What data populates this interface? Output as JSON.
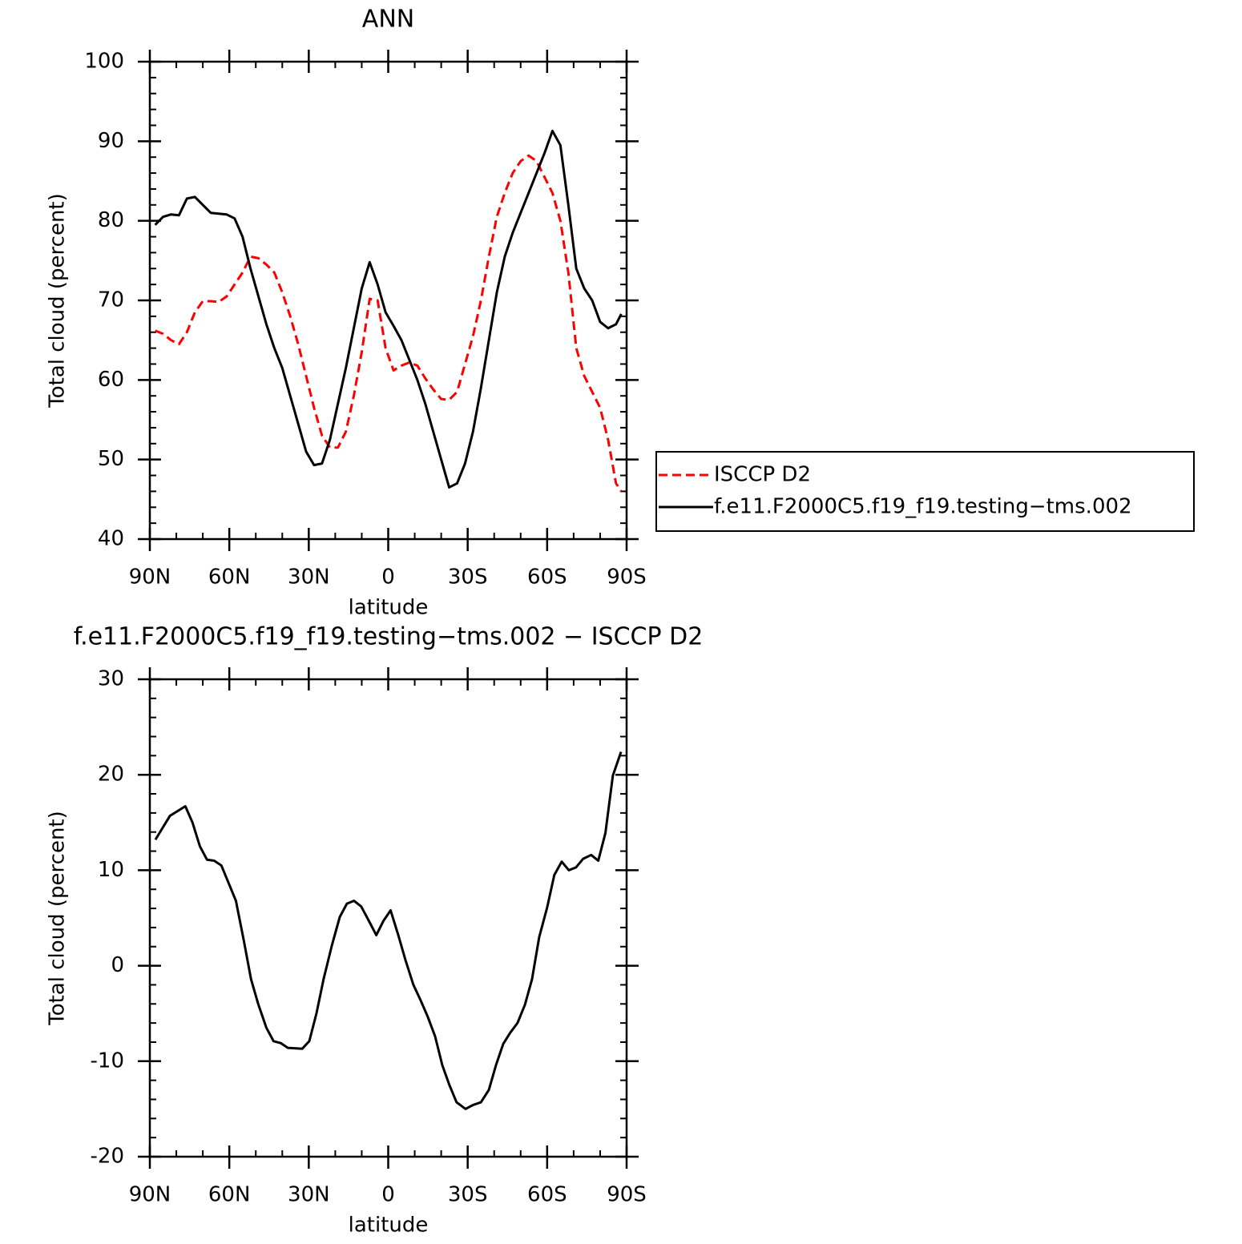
{
  "chart_data": [
    {
      "type": "line",
      "title": "ANN",
      "xlabel": "latitude",
      "ylabel": "Total cloud (percent)",
      "x": [
        88,
        85,
        82,
        79,
        76,
        73,
        70,
        67,
        64,
        61,
        58,
        55,
        52,
        49,
        46,
        43,
        40,
        37,
        34,
        31,
        28,
        25,
        22,
        19,
        16,
        13,
        10,
        7,
        4,
        1,
        -2,
        -5,
        -8,
        -11,
        -14,
        -17,
        -20,
        -23,
        -26,
        -29,
        -32,
        -35,
        -38,
        -41,
        -44,
        -47,
        -50,
        -53,
        -56,
        -59,
        -62,
        -65,
        -68,
        -71,
        -74,
        -77,
        -80,
        -83,
        -86,
        -88
      ],
      "series": [
        {
          "name": "ISCCP D2",
          "color": "#ff0000",
          "dash": true,
          "values": [
            66.2,
            65.8,
            65.0,
            64.5,
            66.0,
            68.5,
            69.9,
            69.9,
            69.8,
            70.5,
            72.0,
            73.5,
            75.5,
            75.3,
            74.5,
            73.5,
            71.0,
            68.0,
            64.5,
            60.5,
            56.5,
            53.0,
            51.5,
            51.5,
            53.5,
            58.0,
            63.5,
            70.2,
            70.0,
            64.0,
            61.2,
            61.8,
            62.2,
            61.8,
            60.2,
            58.8,
            57.6,
            57.5,
            58.5,
            62.0,
            65.5,
            70.0,
            75.5,
            80.5,
            83.5,
            86.0,
            87.5,
            88.2,
            87.5,
            85.5,
            83.5,
            80.0,
            73.5,
            64.0,
            60.5,
            58.5,
            56.5,
            52.5,
            47.0,
            46.0
          ]
        },
        {
          "name": "f.e11.F2000C5.f19_f19.testing−tms.002",
          "color": "#000000",
          "dash": false,
          "values": [
            79.5,
            80.5,
            80.8,
            80.7,
            82.8,
            83.0,
            82.0,
            81.0,
            80.9,
            80.8,
            80.3,
            78.0,
            74.0,
            70.5,
            67.0,
            64.0,
            61.5,
            58.0,
            54.5,
            51.0,
            49.3,
            49.5,
            52.5,
            57.0,
            61.5,
            66.5,
            71.5,
            74.8,
            72.0,
            68.5,
            66.8,
            65.0,
            62.5,
            60.0,
            57.0,
            53.5,
            50.0,
            46.5,
            47.0,
            49.5,
            53.5,
            59.0,
            65.0,
            71.0,
            75.5,
            78.5,
            81.0,
            83.5,
            86.0,
            88.5,
            91.3,
            89.5,
            82.0,
            74.0,
            71.5,
            70.0,
            67.3,
            66.5,
            67.0,
            68.3
          ]
        }
      ],
      "xlim": [
        90,
        -90
      ],
      "xticks": [
        {
          "value": 90,
          "label": "90N"
        },
        {
          "value": 60,
          "label": "60N"
        },
        {
          "value": 30,
          "label": "30N"
        },
        0,
        {
          "value": -30,
          "label": "30S"
        },
        {
          "value": -60,
          "label": "60S"
        },
        {
          "value": -90,
          "label": "90S"
        }
      ],
      "ylim": [
        40,
        100
      ],
      "yticks": [
        40,
        50,
        60,
        70,
        80,
        90,
        100
      ],
      "legend": "right"
    },
    {
      "type": "line",
      "title": "f.e11.F2000C5.f19_f19.testing−tms.002 − ISCCP D2",
      "xlabel": "latitude",
      "ylabel": "Total cloud (percent)",
      "x": [
        87.9,
        82.4,
        76.6,
        73.9,
        71.1,
        68.4,
        65.7,
        63.0,
        57.5,
        54.5,
        51.8,
        49.1,
        46.0,
        43.3,
        40.6,
        37.9,
        32.5,
        29.8,
        27.1,
        24.4,
        21.3,
        18.3,
        15.6,
        12.9,
        10.2,
        7.5,
        4.5,
        1.8,
        -0.9,
        -3.8,
        -6.5,
        -9.5,
        -12.2,
        -15.0,
        -17.7,
        -20.4,
        -23.1,
        -25.8,
        -29.2,
        -31.9,
        -35.0,
        -38.0,
        -40.7,
        -43.4,
        -46.1,
        -48.8,
        -51.6,
        -54.3,
        -57.0,
        -60.0,
        -62.7,
        -65.5,
        -68.2,
        -70.9,
        -73.6,
        -76.6,
        -79.3,
        -82.0,
        -84.8,
        -87.9
      ],
      "series": [
        {
          "color": "#000000",
          "dash": false,
          "values": [
            13.2,
            15.7,
            16.7,
            15.0,
            12.5,
            11.1,
            11.0,
            10.5,
            6.8,
            2.6,
            -1.4,
            -4.0,
            -6.5,
            -7.9,
            -8.1,
            -8.6,
            -8.7,
            -7.9,
            -5.0,
            -1.4,
            2.1,
            5.1,
            6.5,
            6.8,
            6.2,
            4.8,
            3.2,
            4.7,
            5.8,
            3.2,
            0.6,
            -2.0,
            -3.6,
            -5.4,
            -7.4,
            -10.4,
            -12.5,
            -14.3,
            -15.0,
            -14.6,
            -14.3,
            -13.0,
            -10.4,
            -8.2,
            -7.0,
            -6.0,
            -4.1,
            -1.4,
            3.0,
            6.1,
            9.5,
            10.9,
            10.0,
            10.3,
            11.2,
            11.6,
            11.0,
            13.9,
            19.9,
            22.4
          ]
        }
      ],
      "xlim": [
        90,
        -90
      ],
      "xticks": [
        {
          "value": 90,
          "label": "90N"
        },
        {
          "value": 60,
          "label": "60N"
        },
        {
          "value": 30,
          "label": "30N"
        },
        0,
        {
          "value": -30,
          "label": "30S"
        },
        {
          "value": -60,
          "label": "60S"
        },
        {
          "value": -90,
          "label": "90S"
        }
      ],
      "ylim": [
        -20,
        30
      ],
      "yticks": [
        -20,
        -10,
        0,
        10,
        20,
        30
      ]
    }
  ]
}
